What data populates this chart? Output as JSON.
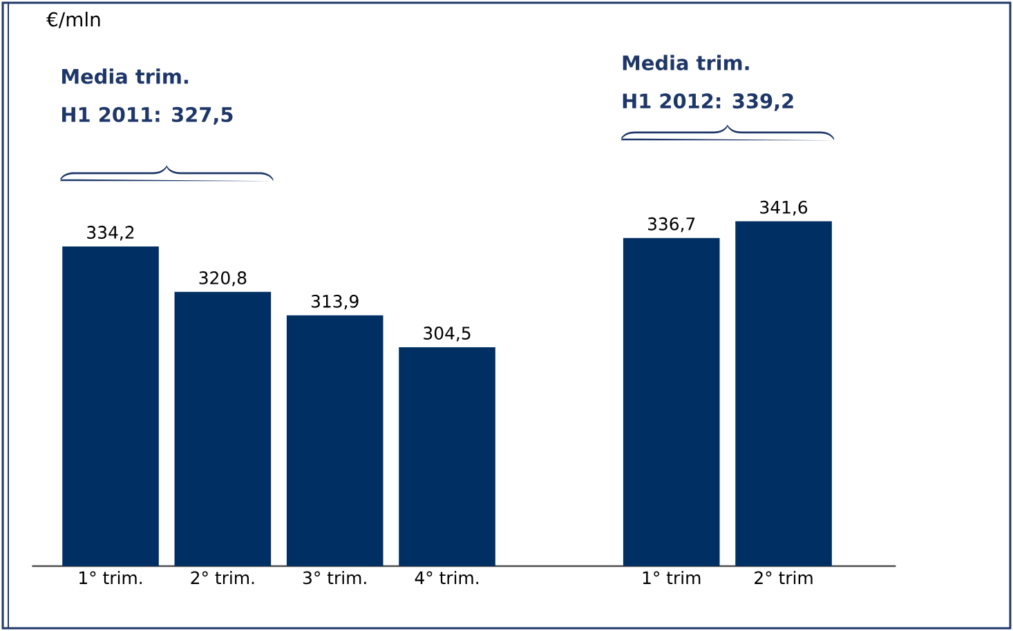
{
  "chart_data": {
    "type": "bar",
    "ylabel": "€/mln",
    "categories": [
      "1° trim.",
      "2° trim.",
      "3° trim.",
      "4° trim.",
      null,
      "1° trim",
      "2° trim"
    ],
    "values": [
      334.2,
      320.8,
      313.9,
      304.5,
      null,
      336.7,
      341.6
    ],
    "value_labels": [
      "334,2",
      "320,8",
      "313,9",
      "304,5",
      null,
      "336,7",
      "341,6"
    ],
    "color": "#003063",
    "ylim": [
      240,
      406
    ],
    "tick_labels": "x",
    "annotations": [
      "Media trim.",
      "H1 2011: 327,5",
      "Media trim.",
      "H1 2012: 339,2"
    ]
  }
}
